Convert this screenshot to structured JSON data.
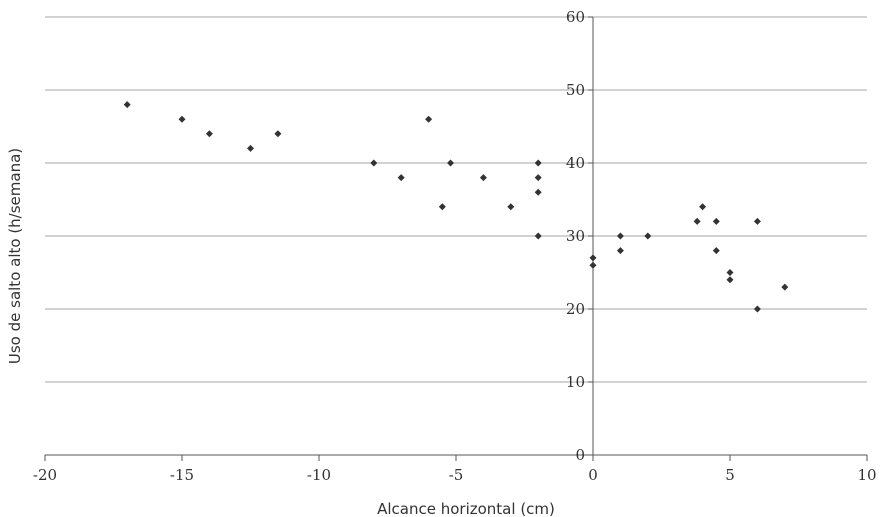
{
  "chart_data": {
    "type": "scatter",
    "title": "",
    "xlabel": "Alcance horizontal (cm)",
    "ylabel": "Uso de salto alto (h/semana)",
    "xlim": [
      -20,
      10
    ],
    "ylim": [
      0,
      60
    ],
    "x_ticks": [
      -20,
      -15,
      -10,
      -5,
      0,
      5,
      10
    ],
    "x_tick_labels": [
      "-20",
      "-15",
      "-10",
      "-5",
      "0",
      "5",
      "10"
    ],
    "y_ticks": [
      0,
      10,
      20,
      30,
      40,
      50,
      60
    ],
    "y_tick_labels": [
      "0",
      "10",
      "20",
      "30",
      "40",
      "50",
      "60"
    ],
    "grid": "horizontal",
    "legend": "none",
    "marker": "diamond",
    "colors": {
      "marker": "#333333",
      "grid": "#a6a6a6",
      "axis": "#555555",
      "text": "#333333"
    },
    "points": [
      {
        "x": -17,
        "y": 48
      },
      {
        "x": -15,
        "y": 46
      },
      {
        "x": -14,
        "y": 44
      },
      {
        "x": -12.5,
        "y": 42
      },
      {
        "x": -11.5,
        "y": 44
      },
      {
        "x": -8,
        "y": 40
      },
      {
        "x": -7,
        "y": 38
      },
      {
        "x": -6,
        "y": 46
      },
      {
        "x": -5.5,
        "y": 34
      },
      {
        "x": -5.2,
        "y": 40
      },
      {
        "x": -4,
        "y": 38
      },
      {
        "x": -3,
        "y": 34
      },
      {
        "x": -2,
        "y": 40
      },
      {
        "x": -2,
        "y": 38
      },
      {
        "x": -2,
        "y": 36
      },
      {
        "x": -2,
        "y": 30
      },
      {
        "x": 0,
        "y": 27
      },
      {
        "x": 0,
        "y": 26
      },
      {
        "x": 1,
        "y": 30
      },
      {
        "x": 1,
        "y": 28
      },
      {
        "x": 2,
        "y": 30
      },
      {
        "x": 3.8,
        "y": 32
      },
      {
        "x": 4,
        "y": 34
      },
      {
        "x": 4.5,
        "y": 32
      },
      {
        "x": 4.5,
        "y": 28
      },
      {
        "x": 5,
        "y": 25
      },
      {
        "x": 5,
        "y": 24
      },
      {
        "x": 6,
        "y": 32
      },
      {
        "x": 6,
        "y": 20
      },
      {
        "x": 7,
        "y": 23
      }
    ]
  }
}
